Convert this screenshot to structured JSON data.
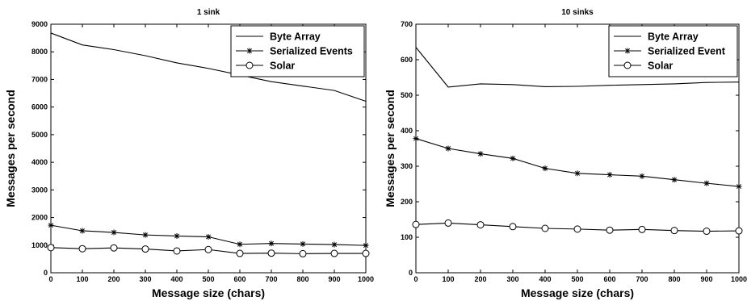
{
  "chart_data": [
    {
      "type": "line",
      "title": "1 sink",
      "xlabel": "Message size (chars)",
      "ylabel": "Messages per second",
      "x": [
        0,
        100,
        200,
        300,
        400,
        500,
        600,
        700,
        800,
        900,
        1000
      ],
      "xlim": [
        0,
        1000
      ],
      "ylim": [
        0,
        9000
      ],
      "xticks": [
        "0",
        "100",
        "200",
        "300",
        "400",
        "500",
        "600",
        "700",
        "800",
        "900",
        "1000"
      ],
      "yticks": [
        "0",
        "1000",
        "2000",
        "3000",
        "4000",
        "5000",
        "6000",
        "7000",
        "8000",
        "9000"
      ],
      "legend_position": "top-right",
      "grid": false,
      "series": [
        {
          "name": "Byte Array",
          "marker": "none",
          "values": [
            8680,
            8250,
            8080,
            7860,
            7600,
            7400,
            7160,
            6920,
            6760,
            6600,
            6210
          ]
        },
        {
          "name": "Serialized Events",
          "marker": "star",
          "values": [
            1720,
            1520,
            1460,
            1370,
            1330,
            1300,
            1030,
            1060,
            1040,
            1020,
            990
          ]
        },
        {
          "name": "Solar",
          "marker": "circle",
          "values": [
            910,
            870,
            900,
            860,
            790,
            840,
            700,
            710,
            690,
            700,
            700
          ]
        }
      ]
    },
    {
      "type": "line",
      "title": "10 sinks",
      "xlabel": "Message size (chars)",
      "ylabel": "Messages per second",
      "x": [
        0,
        100,
        200,
        300,
        400,
        500,
        600,
        700,
        800,
        900,
        1000
      ],
      "xlim": [
        0,
        1000
      ],
      "ylim": [
        0,
        700
      ],
      "xticks": [
        "0",
        "100",
        "200",
        "300",
        "400",
        "500",
        "600",
        "700",
        "800",
        "900",
        "1000"
      ],
      "yticks": [
        "0",
        "100",
        "200",
        "300",
        "400",
        "500",
        "600",
        "700"
      ],
      "legend_position": "top-right",
      "grid": false,
      "series": [
        {
          "name": "Byte Array",
          "marker": "none",
          "values": [
            635,
            523,
            532,
            530,
            524,
            525,
            528,
            530,
            532,
            536,
            537
          ]
        },
        {
          "name": "Serialized Event",
          "marker": "star",
          "values": [
            378,
            350,
            335,
            322,
            294,
            280,
            276,
            272,
            262,
            252,
            243
          ]
        },
        {
          "name": "Solar",
          "marker": "circle",
          "values": [
            136,
            140,
            135,
            130,
            125,
            123,
            120,
            122,
            119,
            117,
            118
          ]
        }
      ]
    }
  ]
}
